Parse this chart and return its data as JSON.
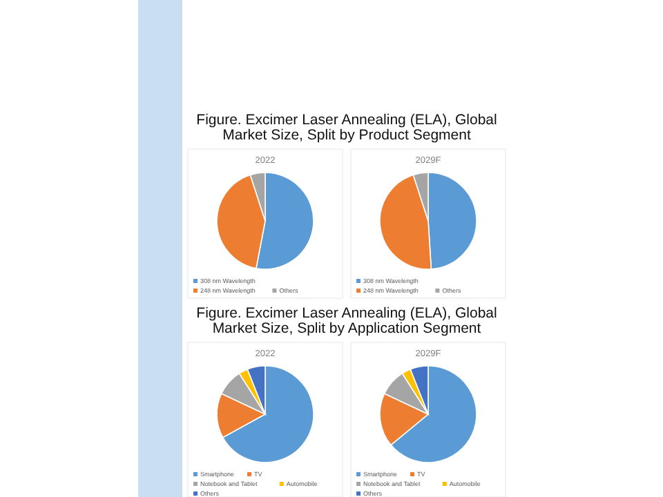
{
  "chart_data": [
    {
      "type": "pie",
      "title": "Figure. Excimer Laser Annealing (ELA), Global Market Size, Split by Product Segment",
      "subtitle": "2022",
      "categories": [
        "308 nm Wavelength",
        "248 nm Wavelength",
        "Others"
      ],
      "values": [
        53,
        42,
        5
      ],
      "colors": [
        "#5b9bd5",
        "#ed7d31",
        "#a5a5a5"
      ],
      "legend": "bottom"
    },
    {
      "type": "pie",
      "subtitle": "2029F",
      "categories": [
        "308 nm Wavelength",
        "248 nm Wavelength",
        "Others"
      ],
      "values": [
        49,
        46,
        5
      ],
      "colors": [
        "#5b9bd5",
        "#ed7d31",
        "#a5a5a5"
      ],
      "legend": "bottom"
    },
    {
      "type": "pie",
      "title": "Figure. Excimer Laser Annealing (ELA), Global Market Size, Split by Application Segment",
      "subtitle": "2022",
      "categories": [
        "Smartphone",
        "TV",
        "Notebook and Tablet",
        "Automobile",
        "Others"
      ],
      "values": [
        67,
        15,
        9,
        3,
        6
      ],
      "colors": [
        "#5b9bd5",
        "#ed7d31",
        "#a5a5a5",
        "#ffc000",
        "#4472c4"
      ],
      "legend": "bottom"
    },
    {
      "type": "pie",
      "subtitle": "2029F",
      "categories": [
        "Smartphone",
        "TV",
        "Notebook and Tablet",
        "Automobile",
        "Others"
      ],
      "values": [
        64,
        18,
        9,
        3,
        6
      ],
      "colors": [
        "#5b9bd5",
        "#ed7d31",
        "#a5a5a5",
        "#ffc000",
        "#4472c4"
      ],
      "legend": "bottom"
    }
  ]
}
